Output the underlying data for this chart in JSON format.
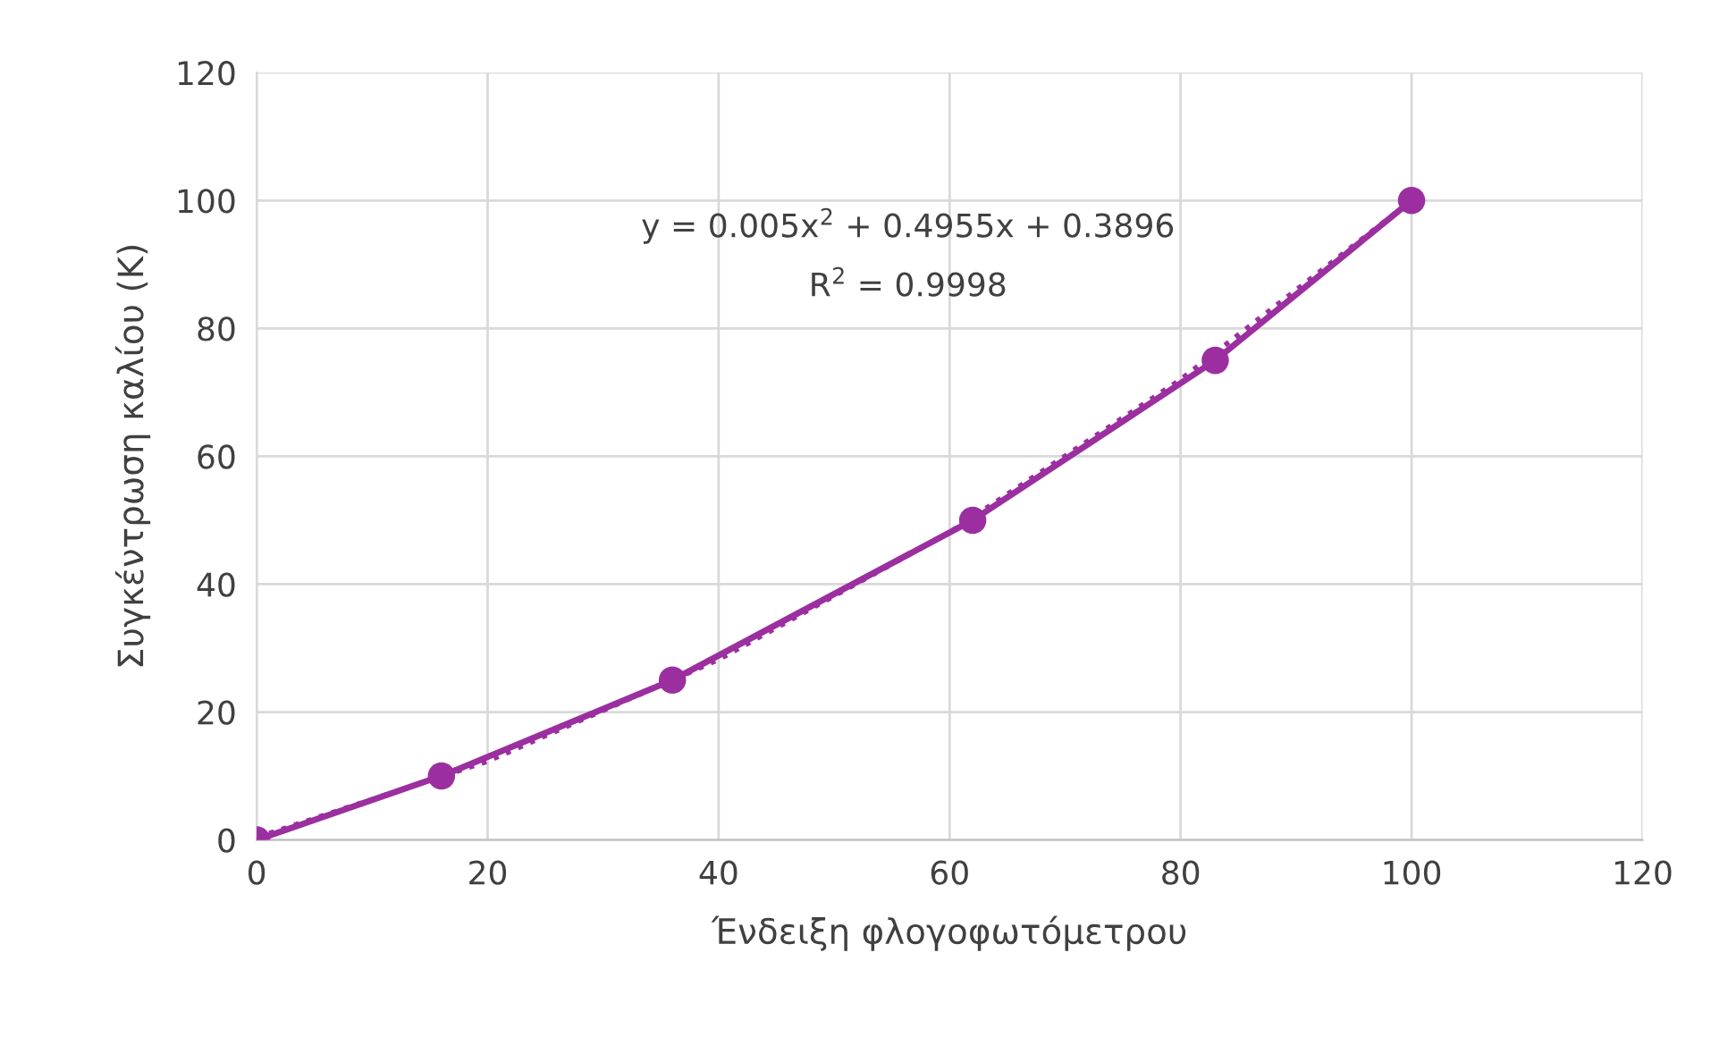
{
  "chart_data": {
    "type": "line",
    "xlabel": "Ένδειξη φλογοφωτόμετρου",
    "ylabel": "Συγκέντρωση καλίου (K)",
    "x": [
      0,
      16,
      36,
      62,
      83,
      100
    ],
    "series": [
      {
        "color": "#9b2fa0",
        "values": [
          0,
          10,
          25,
          50,
          75,
          100
        ],
        "marker": "circle",
        "line_style": "solid"
      },
      {
        "type": "line",
        "color": "#9b2fa0",
        "x": [
          0,
          20,
          40,
          60,
          80,
          100
        ],
        "values": [
          0.4,
          12.3,
          28.2,
          48.1,
          72.0,
          100.0
        ],
        "marker": "none",
        "line_style": "dotted"
      }
    ],
    "annotations": [
      "y = 0.005x$^{2}$ + 0.4955x + 0.3896",
      "R$^{2}$ = 0.9998"
    ],
    "xlim": [
      0,
      120
    ],
    "xticks": [
      0,
      20,
      40,
      60,
      80,
      100,
      120
    ],
    "ylim": [
      0,
      120
    ],
    "yticks": [
      0,
      20,
      40,
      60,
      80,
      100,
      120
    ],
    "grid": true,
    "legend": false
  }
}
